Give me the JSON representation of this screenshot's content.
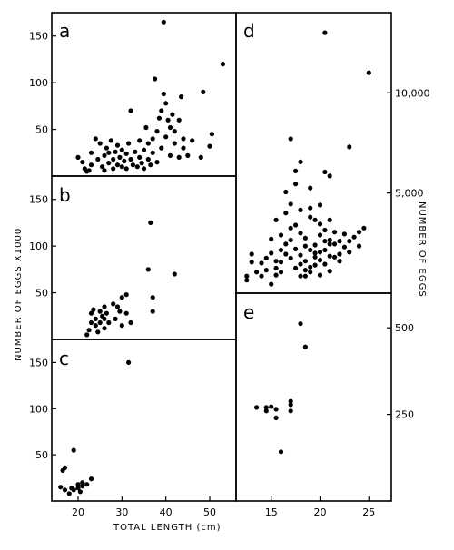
{
  "figure": {
    "x_axis_left_label": "TOTAL LENGTH (cm)",
    "y_axis_left_label": "NUMBER OF EGGS X1000",
    "y_axis_right_label": "NUMBER OF EGGS"
  },
  "chart_data": [
    {
      "panel": "a",
      "type": "scatter",
      "xlabel": "TOTAL LENGTH (cm)",
      "ylabel": "NUMBER OF EGGS X1000",
      "xlim": [
        14,
        56
      ],
      "ylim": [
        0,
        175
      ],
      "x_ticks": [],
      "y_ticks": [
        50,
        100,
        150
      ],
      "points": [
        [
          20,
          20
        ],
        [
          21,
          15
        ],
        [
          21.5,
          8
        ],
        [
          22,
          5
        ],
        [
          22.5,
          6
        ],
        [
          23,
          12
        ],
        [
          23,
          25
        ],
        [
          24,
          40
        ],
        [
          24.5,
          18
        ],
        [
          25,
          35
        ],
        [
          25.5,
          10
        ],
        [
          26,
          22
        ],
        [
          26,
          6
        ],
        [
          26.5,
          30
        ],
        [
          27,
          14
        ],
        [
          27,
          25
        ],
        [
          27.5,
          38
        ],
        [
          28,
          18
        ],
        [
          28,
          8
        ],
        [
          28.5,
          26
        ],
        [
          29,
          33
        ],
        [
          29,
          12
        ],
        [
          29.5,
          20
        ],
        [
          30,
          28
        ],
        [
          30,
          10
        ],
        [
          30.5,
          16
        ],
        [
          31,
          24
        ],
        [
          31,
          8
        ],
        [
          31.5,
          35
        ],
        [
          32,
          18
        ],
        [
          32,
          70
        ],
        [
          32.5,
          12
        ],
        [
          33,
          26
        ],
        [
          33.5,
          10
        ],
        [
          34,
          38
        ],
        [
          34,
          20
        ],
        [
          34.5,
          14
        ],
        [
          35,
          28
        ],
        [
          35,
          8
        ],
        [
          35.5,
          52
        ],
        [
          36,
          35
        ],
        [
          36,
          18
        ],
        [
          36.5,
          12
        ],
        [
          37,
          40
        ],
        [
          37,
          25
        ],
        [
          37.5,
          104
        ],
        [
          38,
          48
        ],
        [
          38,
          15
        ],
        [
          38.5,
          62
        ],
        [
          39,
          30
        ],
        [
          39,
          70
        ],
        [
          39.5,
          88
        ],
        [
          39.5,
          165
        ],
        [
          40,
          42
        ],
        [
          40,
          78
        ],
        [
          40.5,
          60
        ],
        [
          41,
          22
        ],
        [
          41,
          52
        ],
        [
          41.5,
          66
        ],
        [
          42,
          35
        ],
        [
          42,
          48
        ],
        [
          43,
          60
        ],
        [
          43,
          20
        ],
        [
          43.5,
          85
        ],
        [
          44,
          30
        ],
        [
          44,
          40
        ],
        [
          45,
          22
        ],
        [
          46,
          38
        ],
        [
          48,
          20
        ],
        [
          48.5,
          90
        ],
        [
          50,
          32
        ],
        [
          50.5,
          45
        ],
        [
          53,
          120
        ]
      ]
    },
    {
      "panel": "b",
      "type": "scatter",
      "xlabel": "TOTAL LENGTH (cm)",
      "ylabel": "NUMBER OF EGGS X1000",
      "xlim": [
        14,
        56
      ],
      "ylim": [
        0,
        175
      ],
      "x_ticks": [],
      "y_ticks": [
        50,
        100,
        150
      ],
      "points": [
        [
          22,
          5
        ],
        [
          22.5,
          10
        ],
        [
          23,
          18
        ],
        [
          23,
          28
        ],
        [
          23.5,
          32
        ],
        [
          24,
          15
        ],
        [
          24,
          22
        ],
        [
          24.5,
          8
        ],
        [
          25,
          30
        ],
        [
          25,
          18
        ],
        [
          25.5,
          25
        ],
        [
          26,
          12
        ],
        [
          26,
          35
        ],
        [
          26,
          22
        ],
        [
          26.5,
          28
        ],
        [
          27,
          18
        ],
        [
          28,
          38
        ],
        [
          28.5,
          22
        ],
        [
          29,
          35
        ],
        [
          29.5,
          30
        ],
        [
          30,
          15
        ],
        [
          30,
          45
        ],
        [
          31,
          28
        ],
        [
          31,
          48
        ],
        [
          32,
          18
        ],
        [
          36,
          75
        ],
        [
          36.5,
          125
        ],
        [
          37,
          30
        ],
        [
          37,
          45
        ],
        [
          42,
          70
        ]
      ]
    },
    {
      "panel": "c",
      "type": "scatter",
      "xlabel": "TOTAL LENGTH (cm)",
      "ylabel": "NUMBER OF EGGS X1000",
      "xlim": [
        14,
        56
      ],
      "ylim": [
        0,
        175
      ],
      "x_ticks": [
        20,
        30,
        40,
        50
      ],
      "y_ticks": [
        50,
        100,
        150
      ],
      "points": [
        [
          16,
          15
        ],
        [
          16.5,
          33
        ],
        [
          17,
          36
        ],
        [
          17,
          12
        ],
        [
          18,
          8
        ],
        [
          18.5,
          14
        ],
        [
          19,
          55
        ],
        [
          19,
          12
        ],
        [
          20,
          18
        ],
        [
          20,
          14
        ],
        [
          20.5,
          10
        ],
        [
          21,
          20
        ],
        [
          21,
          16
        ],
        [
          22,
          18
        ],
        [
          23,
          24
        ],
        [
          31.5,
          150
        ]
      ]
    },
    {
      "panel": "d",
      "type": "scatter",
      "xlabel": "TOTAL LENGTH (cm)",
      "ylabel": "NUMBER OF EGGS",
      "xlim": [
        11.4,
        27.3
      ],
      "ylim": [
        0,
        14000
      ],
      "x_ticks": [],
      "y_ticks": [
        5000,
        10000
      ],
      "points": [
        [
          12.5,
          850
        ],
        [
          12.5,
          650
        ],
        [
          13,
          1950
        ],
        [
          13,
          1550
        ],
        [
          13.5,
          1050
        ],
        [
          14,
          850
        ],
        [
          14,
          1500
        ],
        [
          14.5,
          1750
        ],
        [
          14.5,
          1150
        ],
        [
          15,
          450
        ],
        [
          15,
          2000
        ],
        [
          15,
          2700
        ],
        [
          15.5,
          900
        ],
        [
          15.5,
          1250
        ],
        [
          15.5,
          1600
        ],
        [
          15.5,
          3650
        ],
        [
          16,
          2150
        ],
        [
          16,
          2900
        ],
        [
          16,
          1550
        ],
        [
          16,
          1050
        ],
        [
          16.5,
          4000
        ],
        [
          16.5,
          2450
        ],
        [
          16.5,
          1950
        ],
        [
          16.5,
          5050
        ],
        [
          17,
          3250
        ],
        [
          17,
          2650
        ],
        [
          17,
          1750
        ],
        [
          17,
          4450
        ],
        [
          17,
          7700
        ],
        [
          17.5,
          1250
        ],
        [
          17.5,
          3400
        ],
        [
          17.5,
          5450
        ],
        [
          17.5,
          6100
        ],
        [
          17.5,
          2200
        ],
        [
          18,
          1450
        ],
        [
          18,
          6550
        ],
        [
          18,
          3000
        ],
        [
          18,
          1900
        ],
        [
          18,
          850
        ],
        [
          18,
          4150
        ],
        [
          18.5,
          2350
        ],
        [
          18.5,
          2750
        ],
        [
          18.5,
          1150
        ],
        [
          18.5,
          1600
        ],
        [
          18.5,
          850
        ],
        [
          19,
          5250
        ],
        [
          19,
          3800
        ],
        [
          19,
          2150
        ],
        [
          19,
          4250
        ],
        [
          19,
          1300
        ],
        [
          19,
          1050
        ],
        [
          19.5,
          3650
        ],
        [
          19.5,
          2400
        ],
        [
          19.5,
          2000
        ],
        [
          19.5,
          1800
        ],
        [
          19.5,
          1400
        ],
        [
          20,
          2900
        ],
        [
          20,
          3450
        ],
        [
          20,
          1650
        ],
        [
          20,
          900
        ],
        [
          20,
          4400
        ],
        [
          20,
          2050
        ],
        [
          20.5,
          6050
        ],
        [
          20.5,
          2600
        ],
        [
          20.5,
          3150
        ],
        [
          20.5,
          1450
        ],
        [
          20.5,
          2150
        ],
        [
          20.5,
          13000
        ],
        [
          21,
          2450
        ],
        [
          21,
          1850
        ],
        [
          21,
          5850
        ],
        [
          21,
          2650
        ],
        [
          21,
          3650
        ],
        [
          21,
          1100
        ],
        [
          21.5,
          2450
        ],
        [
          21.5,
          3050
        ],
        [
          21.5,
          1800
        ],
        [
          22,
          1950
        ],
        [
          22,
          2600
        ],
        [
          22,
          1600
        ],
        [
          22.5,
          2950
        ],
        [
          22.5,
          2300
        ],
        [
          23,
          7300
        ],
        [
          23,
          2600
        ],
        [
          23,
          2050
        ],
        [
          23.5,
          2800
        ],
        [
          24,
          2350
        ],
        [
          24,
          3050
        ],
        [
          24.5,
          3250
        ],
        [
          25,
          11000
        ]
      ]
    },
    {
      "panel": "e",
      "type": "scatter",
      "xlabel": "TOTAL LENGTH (cm)",
      "ylabel": "NUMBER OF EGGS",
      "xlim": [
        11.4,
        27.3
      ],
      "ylim": [
        0,
        600
      ],
      "x_ticks": [
        15,
        20,
        25
      ],
      "y_ticks": [
        250,
        500
      ],
      "points": [
        [
          13.5,
          270
        ],
        [
          14.5,
          260
        ],
        [
          14.5,
          270
        ],
        [
          15,
          272
        ],
        [
          15.5,
          265
        ],
        [
          15.5,
          240
        ],
        [
          16,
          142
        ],
        [
          17,
          260
        ],
        [
          17,
          278
        ],
        [
          17,
          288
        ],
        [
          18,
          512
        ],
        [
          18.5,
          445
        ]
      ]
    }
  ]
}
